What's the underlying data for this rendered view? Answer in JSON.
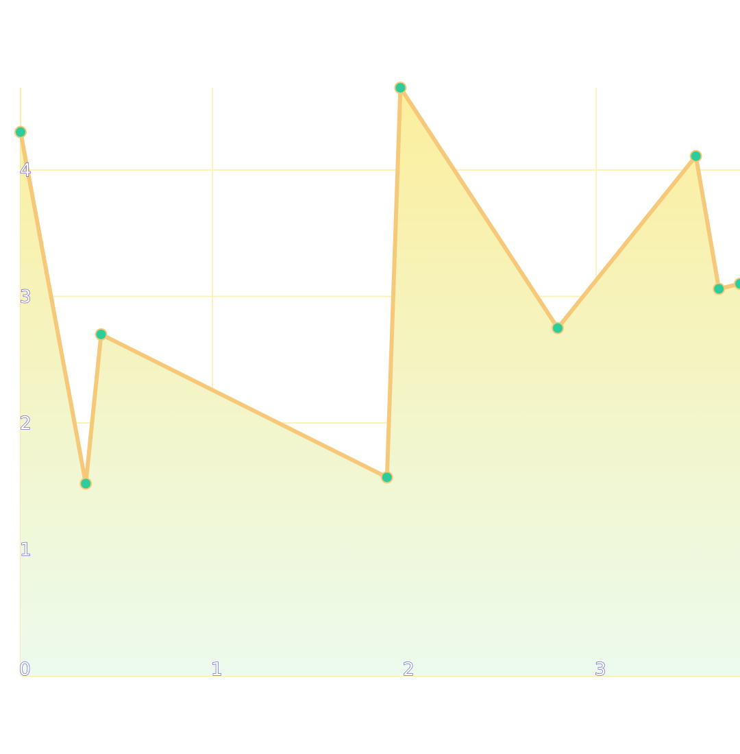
{
  "chart_data": {
    "type": "area",
    "title": "",
    "xlabel": "",
    "ylabel": "",
    "xlim": [
      0,
      3.75
    ],
    "ylim": [
      0,
      4.65
    ],
    "x_ticks": [
      0,
      1,
      2,
      3
    ],
    "y_ticks": [
      1,
      2,
      3,
      4
    ],
    "x_tick_labels": [
      "0",
      "1",
      "2",
      "3"
    ],
    "y_tick_labels": [
      "1",
      "2",
      "3",
      "4"
    ],
    "origin_label": "0",
    "grid": true,
    "series": [
      {
        "points": [
          {
            "x": 0.0,
            "y": 4.3
          },
          {
            "x": 0.34,
            "y": 1.52
          },
          {
            "x": 0.42,
            "y": 2.7
          },
          {
            "x": 1.91,
            "y": 1.57
          },
          {
            "x": 1.98,
            "y": 4.65
          },
          {
            "x": 2.8,
            "y": 2.75
          },
          {
            "x": 3.52,
            "y": 4.11
          },
          {
            "x": 3.64,
            "y": 3.06
          },
          {
            "x": 3.75,
            "y": 3.1
          }
        ],
        "line_color": "#f6c97a",
        "marker_color": "#2ecc9a",
        "fill_top_color": "#fcee9c",
        "fill_bottom_color": "#ecfbee"
      }
    ]
  }
}
